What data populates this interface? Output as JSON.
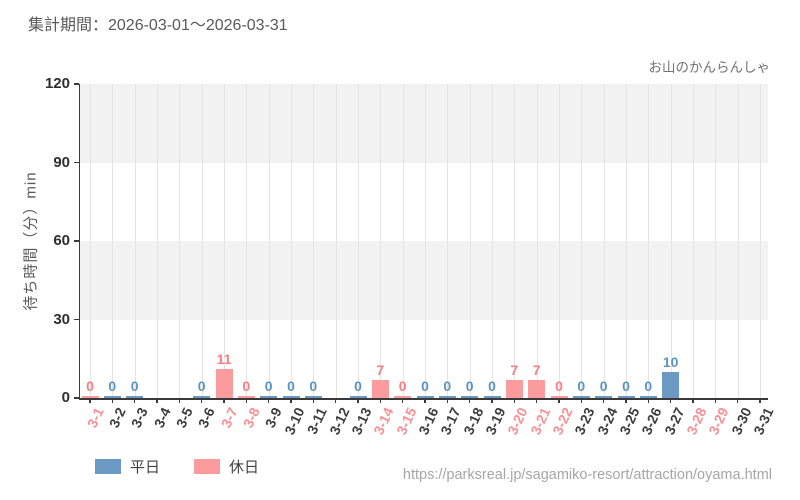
{
  "header": {
    "title": "集計期間：2026-03-01～2026-03-31",
    "attraction_name": "お山のかんらんしゃ"
  },
  "chart_data": {
    "type": "bar",
    "title": "集計期間：2026-03-01～2026-03-31",
    "ylabel": "待ち時間（分）min",
    "ylim": [
      0,
      120
    ],
    "yticks": [
      0,
      30,
      60,
      90,
      120
    ],
    "grid": "vertical gridlines per day, alternating horizontal gray bands (30-60, 90-120)",
    "legend_position": "bottom-left",
    "categories": [
      "3-1",
      "3-2",
      "3-3",
      "3-4",
      "3-5",
      "3-6",
      "3-7",
      "3-8",
      "3-9",
      "3-10",
      "3-11",
      "3-12",
      "3-13",
      "3-14",
      "3-15",
      "3-16",
      "3-17",
      "3-18",
      "3-19",
      "3-20",
      "3-21",
      "3-22",
      "3-23",
      "3-24",
      "3-25",
      "3-26",
      "3-27",
      "3-28",
      "3-29",
      "3-30",
      "3-31"
    ],
    "days": [
      {
        "label": "3-1",
        "day_type": "holiday",
        "value": 0
      },
      {
        "label": "3-2",
        "day_type": "weekday",
        "value": 0
      },
      {
        "label": "3-3",
        "day_type": "weekday",
        "value": 0
      },
      {
        "label": "3-4",
        "day_type": "weekday",
        "value": null
      },
      {
        "label": "3-5",
        "day_type": "weekday",
        "value": null
      },
      {
        "label": "3-6",
        "day_type": "weekday",
        "value": 0
      },
      {
        "label": "3-7",
        "day_type": "holiday",
        "value": 11
      },
      {
        "label": "3-8",
        "day_type": "holiday",
        "value": 0
      },
      {
        "label": "3-9",
        "day_type": "weekday",
        "value": 0
      },
      {
        "label": "3-10",
        "day_type": "weekday",
        "value": 0
      },
      {
        "label": "3-11",
        "day_type": "weekday",
        "value": 0
      },
      {
        "label": "3-12",
        "day_type": "weekday",
        "value": null
      },
      {
        "label": "3-13",
        "day_type": "weekday",
        "value": 0
      },
      {
        "label": "3-14",
        "day_type": "holiday",
        "value": 7
      },
      {
        "label": "3-15",
        "day_type": "holiday",
        "value": 0
      },
      {
        "label": "3-16",
        "day_type": "weekday",
        "value": 0
      },
      {
        "label": "3-17",
        "day_type": "weekday",
        "value": 0
      },
      {
        "label": "3-18",
        "day_type": "weekday",
        "value": 0
      },
      {
        "label": "3-19",
        "day_type": "weekday",
        "value": 0
      },
      {
        "label": "3-20",
        "day_type": "holiday",
        "value": 7
      },
      {
        "label": "3-21",
        "day_type": "holiday",
        "value": 7
      },
      {
        "label": "3-22",
        "day_type": "holiday",
        "value": 0
      },
      {
        "label": "3-23",
        "day_type": "weekday",
        "value": 0
      },
      {
        "label": "3-24",
        "day_type": "weekday",
        "value": 0
      },
      {
        "label": "3-25",
        "day_type": "weekday",
        "value": 0
      },
      {
        "label": "3-26",
        "day_type": "weekday",
        "value": 0
      },
      {
        "label": "3-27",
        "day_type": "weekday",
        "value": 10
      },
      {
        "label": "3-28",
        "day_type": "holiday",
        "value": null
      },
      {
        "label": "3-29",
        "day_type": "holiday",
        "value": null
      },
      {
        "label": "3-30",
        "day_type": "weekday",
        "value": null
      },
      {
        "label": "3-31",
        "day_type": "weekday",
        "value": null
      }
    ]
  },
  "legend": [
    {
      "key": "weekday",
      "label": "平日",
      "color": "#6c99c3"
    },
    {
      "key": "holiday",
      "label": "休日",
      "color": "#fb9b9d"
    }
  ],
  "colors": {
    "weekday_bar": "#6c99c3",
    "holiday_bar": "#fb9b9d",
    "weekday_value_label": "#5d93c0",
    "holiday_value_label": "#f77f83",
    "weekday_tick_label": "#3d3d3d",
    "holiday_tick_label": "#f89095",
    "band": "#f2f2f2",
    "gridline": "#e4e4e4",
    "axis": "#3a3a3a"
  },
  "footer": {
    "url": "https://parksreal.jp/sagamiko-resort/attraction/oyama.html"
  }
}
